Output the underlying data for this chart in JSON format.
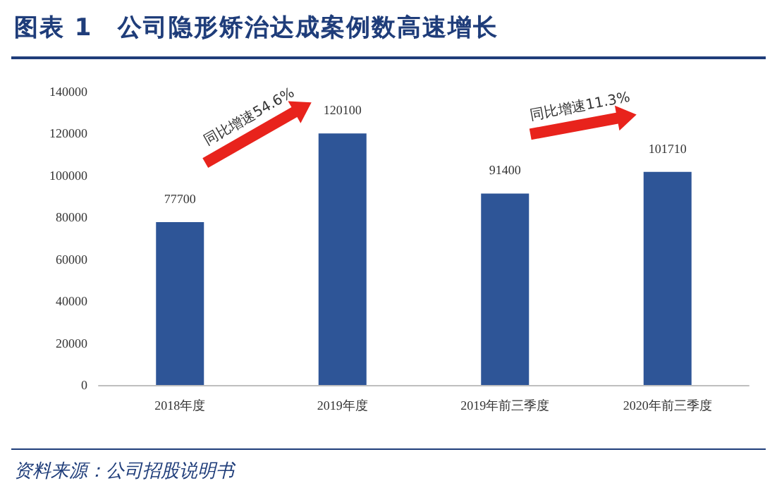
{
  "chart_data": {
    "type": "bar",
    "title": "图表 1　公司隐形矫治达成案例数高速增长",
    "categories": [
      "2018年度",
      "2019年度",
      "2019年前三季度",
      "2020年前三季度"
    ],
    "values": [
      77700,
      120100,
      91400,
      101710
    ],
    "color": "#2e5597",
    "ylim": [
      0,
      140000
    ],
    "yticks": [
      0,
      20000,
      40000,
      60000,
      80000,
      100000,
      120000,
      140000
    ],
    "grid": false,
    "data_labels": true,
    "annotations": [
      "同比增速54.6%",
      "同比增速11.3%",
      "资料来源：公司招股说明书"
    ]
  }
}
